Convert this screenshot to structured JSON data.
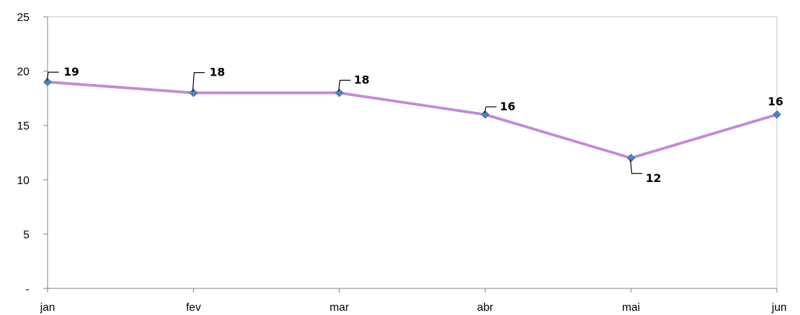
{
  "chart_data": {
    "type": "line",
    "categories": [
      "jan",
      "fev",
      "mar",
      "abr",
      "mai",
      "jun"
    ],
    "values": [
      19,
      18,
      18,
      16,
      12,
      16
    ],
    "data_labels": [
      "19",
      "18",
      "18",
      "16",
      "12",
      "16"
    ],
    "y_ticks": [
      "-",
      "5",
      "10",
      "15",
      "20",
      "25"
    ],
    "y_tick_values": [
      0,
      5,
      10,
      15,
      20,
      25
    ],
    "ylim": [
      0,
      25
    ],
    "title": "",
    "xlabel": "",
    "ylabel": "",
    "grid": false,
    "legend": "none",
    "colors": {
      "line": "#c58ad8",
      "marker": "#4f81bd",
      "frame": "#bfbfbf",
      "axis": "#808080"
    }
  }
}
